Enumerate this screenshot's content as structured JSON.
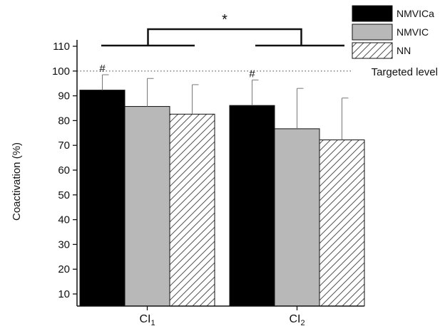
{
  "chart_data": {
    "type": "bar",
    "ylabel": "Coactivation (%)",
    "ylim": [
      5,
      112
    ],
    "yticks": [
      10,
      20,
      30,
      40,
      50,
      60,
      70,
      80,
      90,
      100,
      110
    ],
    "categories": [
      {
        "main": "CI",
        "sub": "1"
      },
      {
        "main": "CI",
        "sub": "2"
      }
    ],
    "series": [
      {
        "name": "NMVICa",
        "values": [
          92.3,
          86.1
        ],
        "errors": [
          6.2,
          10.3
        ],
        "fill": "#000000",
        "pattern": "solid"
      },
      {
        "name": "NMVIC",
        "values": [
          85.7,
          76.7
        ],
        "errors": [
          11.3,
          16.3
        ],
        "fill": "#b8b8b8",
        "pattern": "solid"
      },
      {
        "name": "NN",
        "values": [
          82.6,
          72.2
        ],
        "errors": [
          11.9,
          16.9
        ],
        "fill": "#ffffff",
        "pattern": "hatch"
      }
    ],
    "reference_line": {
      "value": 100,
      "label": "Targeted level",
      "style": "dotted"
    },
    "annotations": {
      "hash": [
        "#",
        "#"
      ],
      "significance": "*"
    },
    "legend_position": "top-right",
    "grid": false
  }
}
